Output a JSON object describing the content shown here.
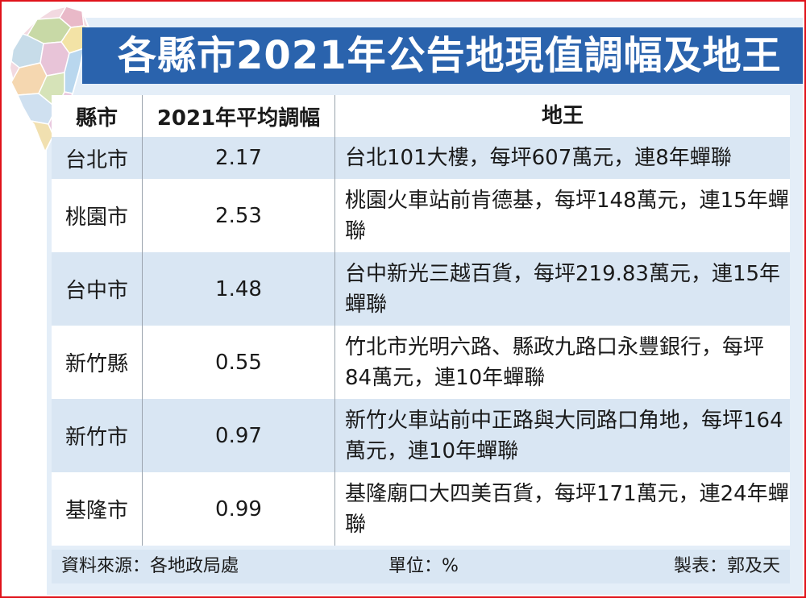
{
  "title": "各縣市2021年公告地現值調幅及地王",
  "table": {
    "headers": [
      "縣市",
      "2021年平均調幅",
      "地王"
    ],
    "rows": [
      {
        "city": "台北市",
        "rate": "2.17",
        "landmark": "台北101大樓，每坪607萬元，連8年蟬聯"
      },
      {
        "city": "桃園市",
        "rate": "2.53",
        "landmark": "桃園火車站前肯德基，每坪148萬元，連15年蟬聯"
      },
      {
        "city": "台中市",
        "rate": "1.48",
        "landmark": "台中新光三越百貨，每坪219.83萬元，連15年蟬聯"
      },
      {
        "city": "新竹縣",
        "rate": "0.55",
        "landmark": "竹北市光明六路、縣政九路口永豐銀行，每坪84萬元，連10年蟬聯"
      },
      {
        "city": "新竹市",
        "rate": "0.97",
        "landmark": "新竹火車站前中正路與大同路口角地，每坪164萬元，連10年蟬聯"
      },
      {
        "city": "基隆市",
        "rate": "0.99",
        "landmark": "基隆廟口大四美百貨，每坪171萬元，連24年蟬聯"
      }
    ]
  },
  "footer": {
    "source": "資料來源：各地政局處",
    "unit": "單位：%",
    "author": "製表：郭及天"
  },
  "colors": {
    "banner": "#2a63ad",
    "panel": "#e4eef8",
    "stripe": "#d9e6f3",
    "border": "#e0121a"
  }
}
